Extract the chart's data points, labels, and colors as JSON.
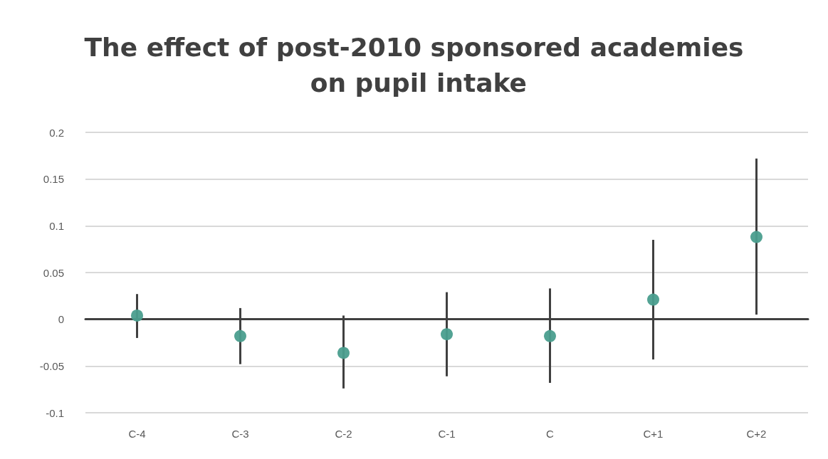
{
  "chart_data": {
    "type": "scatter",
    "title": "The effect of post-2010 sponsored academies on pupil intake",
    "categories": [
      "C-4",
      "C-3",
      "C-2",
      "C-1",
      "C",
      "C+1",
      "C+2"
    ],
    "values": [
      0.004,
      -0.018,
      -0.036,
      -0.016,
      -0.018,
      0.021,
      0.088
    ],
    "errors": [
      [
        -0.02,
        0.027
      ],
      [
        -0.048,
        0.012
      ],
      [
        -0.074,
        0.004
      ],
      [
        -0.061,
        0.029
      ],
      [
        -0.068,
        0.033
      ],
      [
        -0.043,
        0.085
      ],
      [
        0.005,
        0.172
      ]
    ],
    "color": "#4a9e8e",
    "marker": "circle",
    "grid": "y",
    "ylim": [
      -0.1,
      0.2
    ],
    "yticks": [
      -0.1,
      -0.05,
      0,
      0.05,
      0.1,
      0.15,
      0.2
    ]
  }
}
